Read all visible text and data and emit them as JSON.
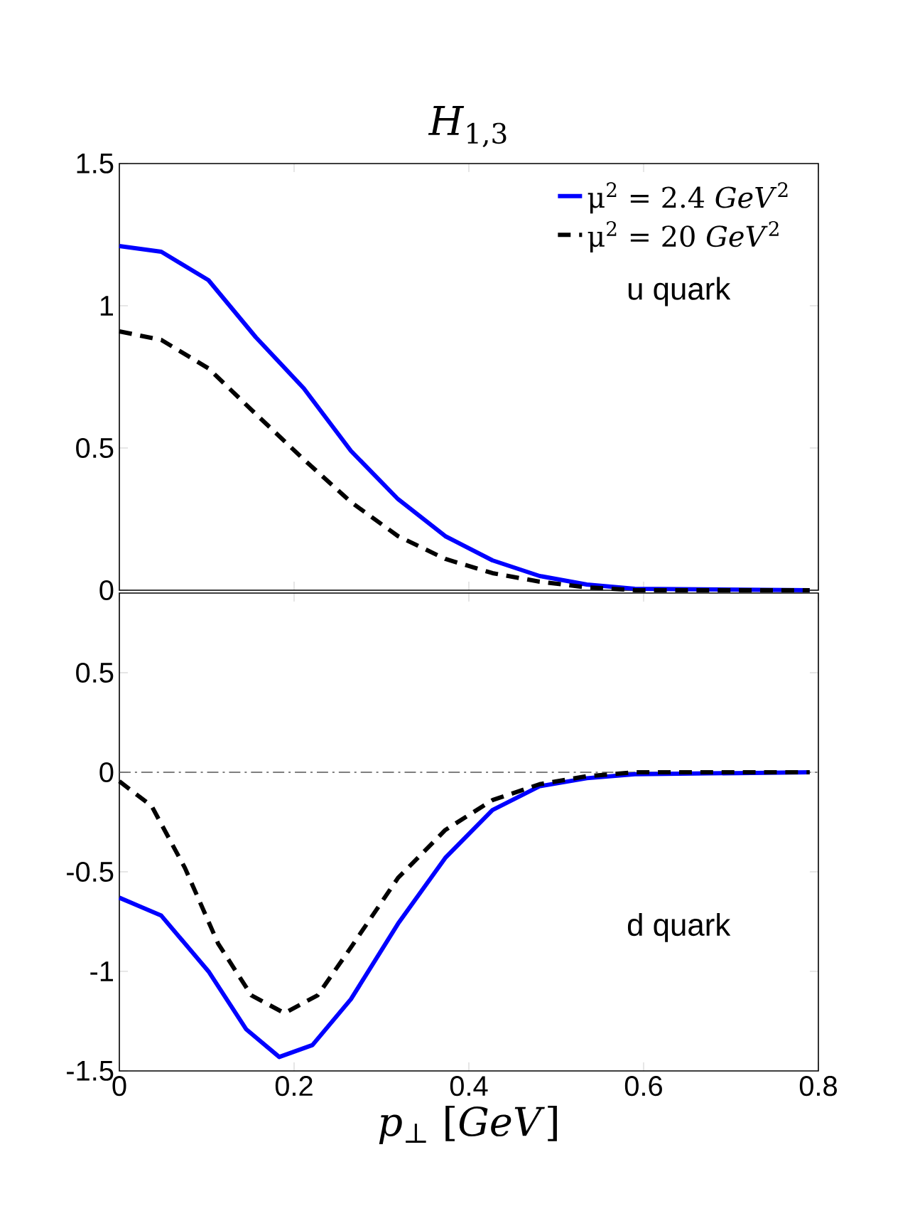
{
  "chart_data": [
    {
      "type": "line",
      "title": "*H*$_{1,3}$",
      "xlim": [
        0,
        0.8
      ],
      "xticks": [
        0,
        0.2,
        0.4,
        0.6,
        0.8
      ],
      "ylim": [
        0,
        1.5
      ],
      "yticks": [
        0,
        0.5,
        1,
        1.5
      ],
      "tick_labels": "y",
      "legend": "top right",
      "annotations": [
        "u quark"
      ],
      "series": [
        {
          "name": "μ$^{2}$ = 2.4 *GeV*$^{2}$",
          "color": "#0000ff",
          "line_style": "solid",
          "x": [
            0,
            0.048,
            0.102,
            0.156,
            0.211,
            0.265,
            0.319,
            0.373,
            0.427,
            0.481,
            0.535,
            0.59,
            0.79
          ],
          "values": [
            1.21,
            1.19,
            1.09,
            0.89,
            0.71,
            0.49,
            0.32,
            0.19,
            0.105,
            0.05,
            0.02,
            0.005,
            0
          ]
        },
        {
          "name": "μ$^{2}$ = 20 *GeV*$^{2}$",
          "color": "#000000",
          "line_style": "dashed",
          "x": [
            0,
            0.048,
            0.102,
            0.156,
            0.211,
            0.265,
            0.319,
            0.373,
            0.427,
            0.481,
            0.535,
            0.59,
            0.79
          ],
          "values": [
            0.91,
            0.88,
            0.78,
            0.62,
            0.46,
            0.31,
            0.19,
            0.11,
            0.06,
            0.03,
            0.01,
            0,
            0
          ]
        }
      ]
    },
    {
      "type": "line",
      "xlabel": "*p*$_{⊥}$ [*GeV*]",
      "xlim": [
        0,
        0.8
      ],
      "xticks": [
        0,
        0.2,
        0.4,
        0.6,
        0.8
      ],
      "ylim": [
        -1.5,
        0.9
      ],
      "yticks": [
        -1.5,
        -1,
        -0.5,
        0,
        0.5
      ],
      "annotations": [
        "d quark"
      ],
      "ref_lines": [
        {
          "axis": "y",
          "value": 0,
          "color": "#555555",
          "line_style": "dashdot"
        }
      ],
      "series": [
        {
          "color": "#0000ff",
          "line_style": "solid",
          "x": [
            0,
            0.048,
            0.102,
            0.145,
            0.183,
            0.221,
            0.265,
            0.319,
            0.373,
            0.427,
            0.481,
            0.535,
            0.59,
            0.79
          ],
          "values": [
            -0.63,
            -0.72,
            -1.0,
            -1.29,
            -1.43,
            -1.37,
            -1.14,
            -0.76,
            -0.43,
            -0.19,
            -0.07,
            -0.03,
            -0.01,
            0
          ]
        },
        {
          "color": "#000000",
          "line_style": "dashed",
          "x": [
            0,
            0.037,
            0.075,
            0.113,
            0.151,
            0.189,
            0.227,
            0.265,
            0.319,
            0.373,
            0.427,
            0.481,
            0.535,
            0.59,
            0.79
          ],
          "values": [
            -0.045,
            -0.17,
            -0.48,
            -0.86,
            -1.12,
            -1.21,
            -1.12,
            -0.88,
            -0.53,
            -0.29,
            -0.14,
            -0.06,
            -0.02,
            0,
            0
          ]
        }
      ]
    }
  ]
}
